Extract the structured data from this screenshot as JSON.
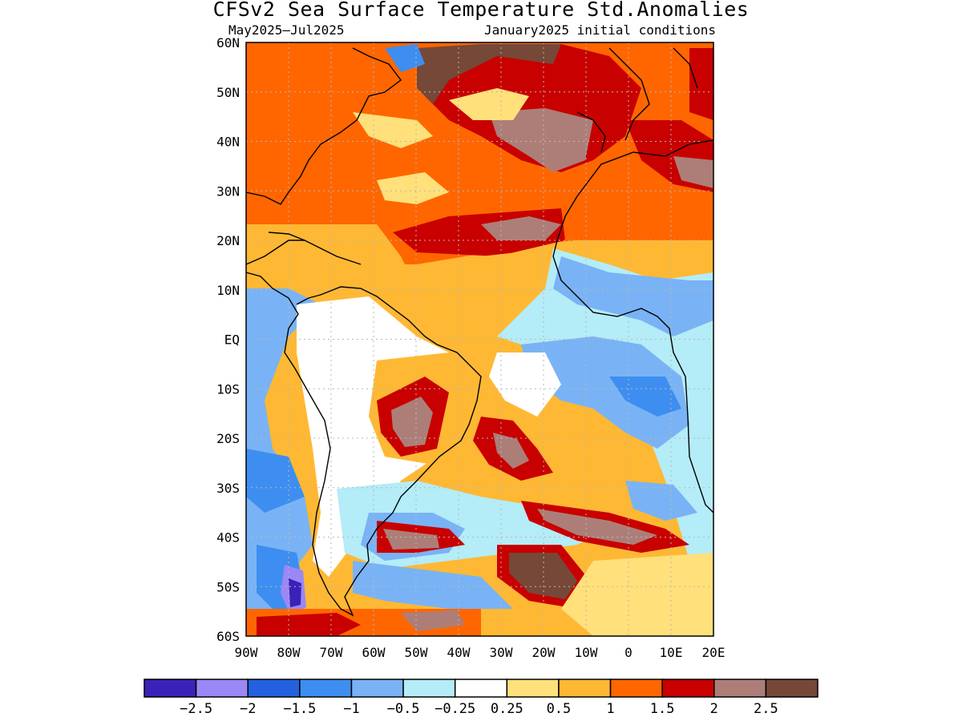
{
  "title": "CFSv2 Sea Surface Temperature Std.Anomalies",
  "subtitle_left": "May2025–Jul2025",
  "subtitle_right": "January2025 initial conditions",
  "lat_labels": [
    "60N",
    "50N",
    "40N",
    "30N",
    "20N",
    "10N",
    "EQ",
    "10S",
    "20S",
    "30S",
    "40S",
    "50S",
    "60S"
  ],
  "lon_labels": [
    "90W",
    "80W",
    "70W",
    "60W",
    "50W",
    "40W",
    "30W",
    "20W",
    "10W",
    "0",
    "10E",
    "20E"
  ],
  "colorbar": {
    "colors": [
      "#3a22b8",
      "#9b87f5",
      "#2361e0",
      "#3d8ef0",
      "#79b3f5",
      "#b4ecf7",
      "#ffffff",
      "#ffe07a",
      "#ffb833",
      "#ff6600",
      "#c80000",
      "#ad7e78",
      "#754838"
    ],
    "labels": [
      "−2.5",
      "−2",
      "−1.5",
      "−1",
      "−0.5",
      "−0.25",
      "0.25",
      "0.5",
      "1",
      "1.5",
      "2",
      "2.5"
    ]
  }
}
